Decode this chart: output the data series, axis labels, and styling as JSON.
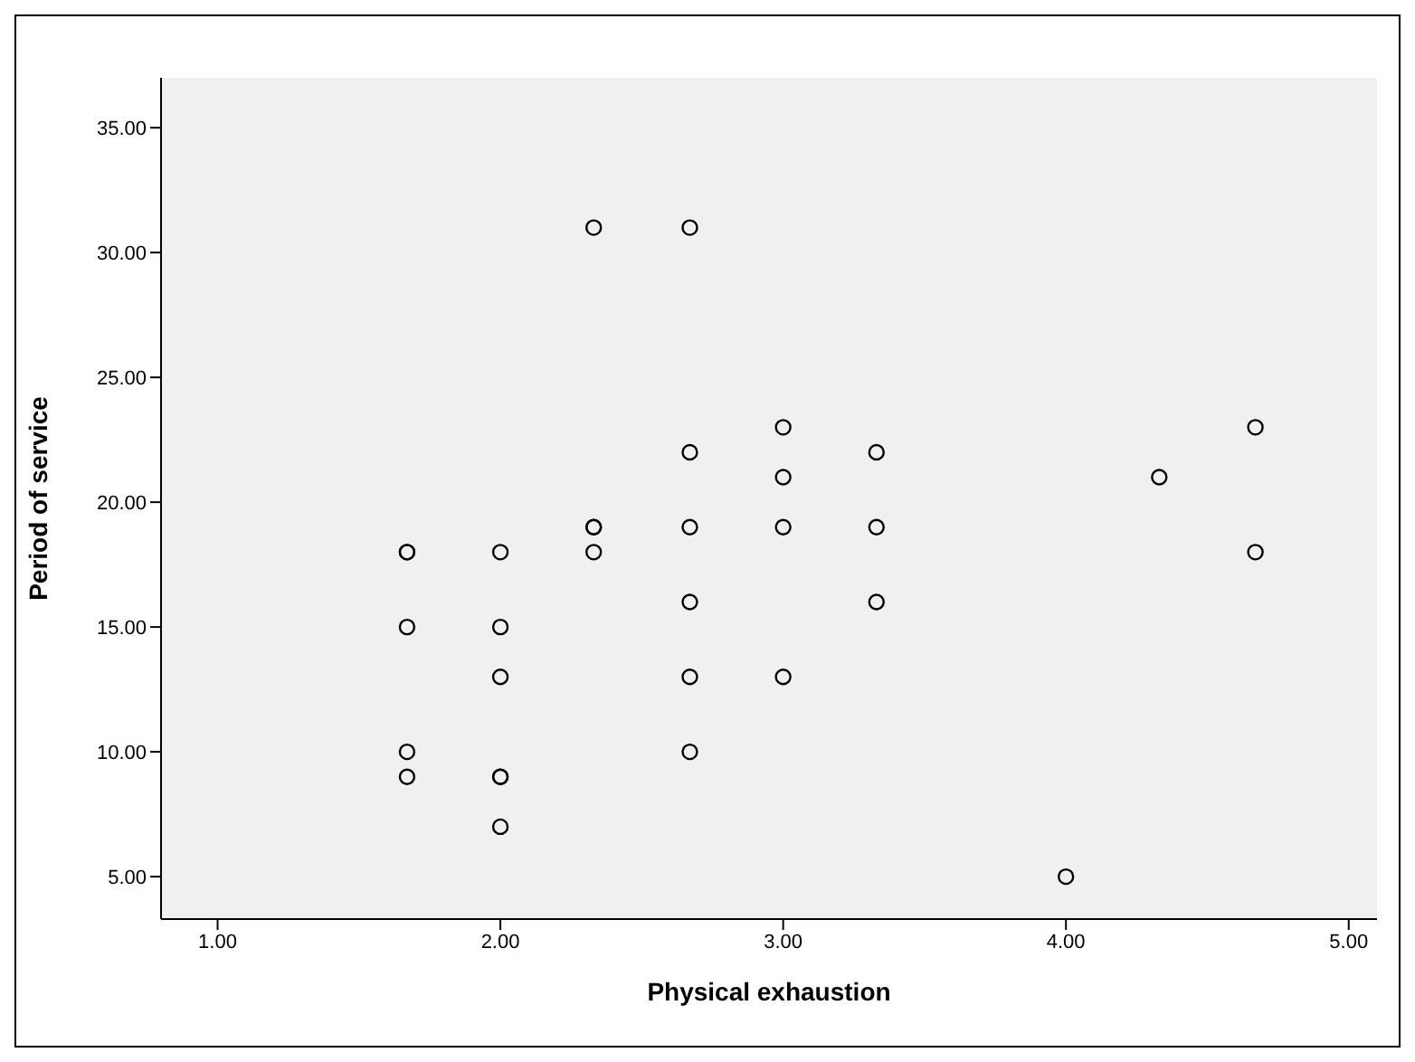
{
  "chart_data": {
    "type": "scatter",
    "xlabel": "Physical exhaustion",
    "ylabel": "Period of service",
    "x": [
      2.33,
      2.67,
      3,
      4.67,
      2.67,
      3.33,
      3,
      4.33,
      2.33,
      2.33,
      2.67,
      3,
      3.33,
      1.67,
      1.67,
      2,
      2.33,
      4.67,
      2.67,
      3.33,
      1.67,
      2,
      2,
      2.67,
      3,
      1.67,
      2.67,
      1.67,
      2,
      2,
      2,
      4
    ],
    "values": [
      31,
      31,
      23,
      23,
      22,
      22,
      21,
      21,
      19,
      19,
      19,
      19,
      19,
      18,
      18,
      18,
      18,
      18,
      16,
      16,
      15,
      15,
      13,
      13,
      13,
      10,
      10,
      9,
      9,
      9,
      7,
      5
    ],
    "color": "#000000",
    "marker": "circle",
    "grid": false,
    "legend": false,
    "xlim": [
      0.8,
      5.1
    ],
    "ylim": [
      3.3,
      37
    ],
    "xticks": [
      {
        "value": 1,
        "label": "1.00"
      },
      {
        "value": 2,
        "label": "2.00"
      },
      {
        "value": 3,
        "label": "3.00"
      },
      {
        "value": 4,
        "label": "4.00"
      },
      {
        "value": 5,
        "label": "5.00"
      }
    ],
    "yticks": [
      {
        "value": 5,
        "label": "5.00"
      },
      {
        "value": 10,
        "label": "10.00"
      },
      {
        "value": 15,
        "label": "15.00"
      },
      {
        "value": 20,
        "label": "20.00"
      },
      {
        "value": 25,
        "label": "25.00"
      },
      {
        "value": 30,
        "label": "30.00"
      },
      {
        "value": 35,
        "label": "35.00"
      }
    ]
  }
}
